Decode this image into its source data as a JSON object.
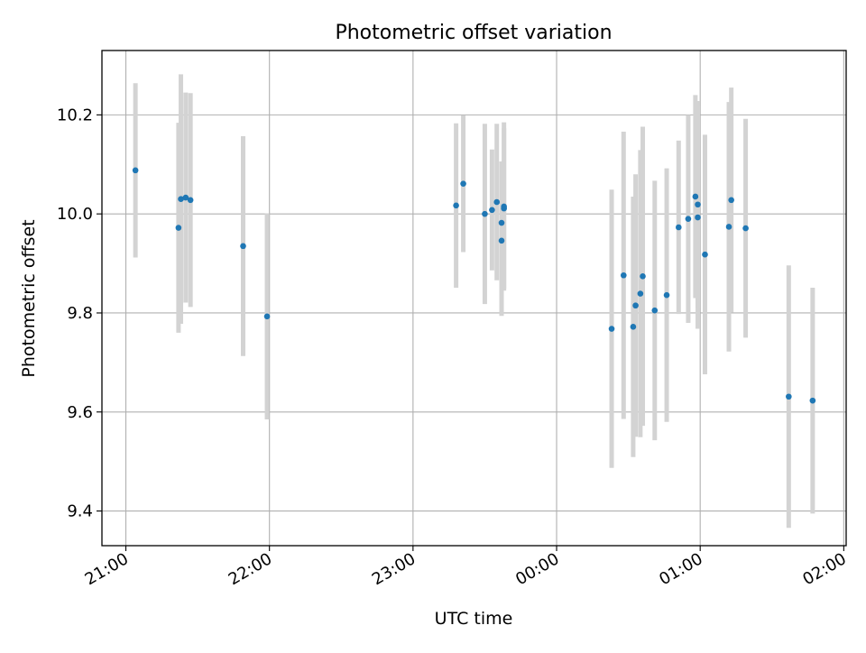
{
  "chart_data": {
    "type": "scatter",
    "title": "Photometric offset variation",
    "xlabel": "UTC time",
    "ylabel": "Photometric offset",
    "x_axis_kind": "time",
    "xlim": [
      "20:50",
      "02:01"
    ],
    "ylim": [
      9.33,
      10.33
    ],
    "grid": true,
    "x_ticks": [
      "21:00",
      "22:00",
      "23:00",
      "00:00",
      "01:00",
      "02:00"
    ],
    "y_ticks": [
      "9.4",
      "9.6",
      "9.8",
      "10.0",
      "10.2"
    ],
    "y_tick_values": [
      9.4,
      9.6,
      9.8,
      10.0,
      10.2
    ],
    "colors": {
      "points": "#1f77b4",
      "errorbars": "#d3d3d3",
      "grid": "#b0b0b0"
    },
    "points": [
      {
        "t": "21:04",
        "y": 10.088,
        "err": 0.176
      },
      {
        "t": "21:22",
        "y": 9.972,
        "err": 0.212
      },
      {
        "t": "21:23",
        "y": 10.03,
        "err": 0.252
      },
      {
        "t": "21:25",
        "y": 10.033,
        "err": 0.212
      },
      {
        "t": "21:27",
        "y": 10.028,
        "err": 0.216
      },
      {
        "t": "21:49",
        "y": 9.935,
        "err": 0.222
      },
      {
        "t": "21:59",
        "y": 9.793,
        "err": 0.208
      },
      {
        "t": "23:18",
        "y": 10.017,
        "err": 0.166
      },
      {
        "t": "23:21",
        "y": 10.061,
        "err": 0.138
      },
      {
        "t": "23:30",
        "y": 10.0,
        "err": 0.182
      },
      {
        "t": "23:33",
        "y": 10.008,
        "err": 0.122
      },
      {
        "t": "23:35",
        "y": 10.024,
        "err": 0.158
      },
      {
        "t": "23:37",
        "y": 9.982,
        "err": 0.124
      },
      {
        "t": "23:37",
        "y": 9.946,
        "err": 0.152
      },
      {
        "t": "23:38",
        "y": 10.011,
        "err": 0.162
      },
      {
        "t": "23:38",
        "y": 10.015,
        "err": 0.17
      },
      {
        "t": "00:23",
        "y": 9.768,
        "err": 0.281
      },
      {
        "t": "00:28",
        "y": 9.876,
        "err": 0.29
      },
      {
        "t": "00:32",
        "y": 9.772,
        "err": 0.263
      },
      {
        "t": "00:33",
        "y": 9.815,
        "err": 0.265
      },
      {
        "t": "00:35",
        "y": 9.839,
        "err": 0.29
      },
      {
        "t": "00:36",
        "y": 9.874,
        "err": 0.302
      },
      {
        "t": "00:41",
        "y": 9.805,
        "err": 0.262
      },
      {
        "t": "00:46",
        "y": 9.836,
        "err": 0.256
      },
      {
        "t": "00:51",
        "y": 9.973,
        "err": 0.175
      },
      {
        "t": "00:55",
        "y": 9.99,
        "err": 0.21
      },
      {
        "t": "00:58",
        "y": 10.035,
        "err": 0.205
      },
      {
        "t": "00:59",
        "y": 9.993,
        "err": 0.225
      },
      {
        "t": "00:59",
        "y": 10.019,
        "err": 0.209
      },
      {
        "t": "01:02",
        "y": 9.918,
        "err": 0.242
      },
      {
        "t": "01:12",
        "y": 9.974,
        "err": 0.252
      },
      {
        "t": "01:13",
        "y": 10.028,
        "err": 0.227
      },
      {
        "t": "01:19",
        "y": 9.971,
        "err": 0.221
      },
      {
        "t": "01:37",
        "y": 9.631,
        "err": 0.265
      },
      {
        "t": "01:47",
        "y": 9.623,
        "err": 0.228
      }
    ]
  }
}
